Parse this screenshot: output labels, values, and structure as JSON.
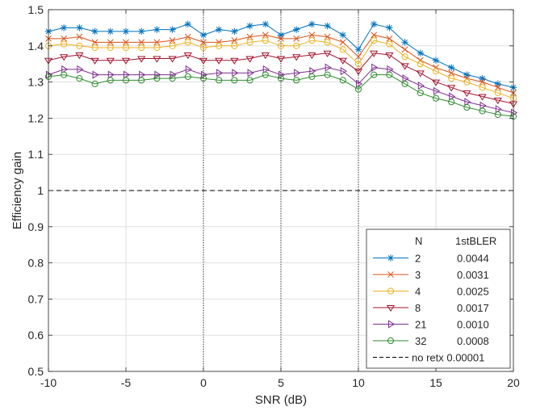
{
  "chart_data": {
    "type": "line",
    "xlabel": "SNR (dB)",
    "ylabel": "Efficiency gain",
    "xlim": [
      -10,
      20
    ],
    "ylim": [
      0.5,
      1.5
    ],
    "xticks": [
      -10,
      -5,
      0,
      5,
      10,
      15,
      20
    ],
    "yticks": [
      0.5,
      0.6,
      0.7,
      0.8,
      0.9,
      1,
      1.1,
      1.2,
      1.3,
      1.4,
      1.5
    ],
    "grid": true,
    "legend_position": "bottom-right",
    "legend_headers": [
      "N",
      "1stBLER"
    ],
    "vertical_markers": [
      0,
      5,
      10
    ],
    "x": [
      -10,
      -9,
      -8,
      -7,
      -6,
      -5,
      -4,
      -3,
      -2,
      -1,
      0,
      1,
      2,
      3,
      4,
      5,
      6,
      7,
      8,
      9,
      10,
      11,
      12,
      13,
      14,
      15,
      16,
      17,
      18,
      19,
      20
    ],
    "series": [
      {
        "name": "2",
        "bler": "0.0044",
        "color": "#0072BD",
        "marker": "asterisk",
        "values": [
          1.44,
          1.45,
          1.45,
          1.44,
          1.44,
          1.44,
          1.44,
          1.445,
          1.445,
          1.46,
          1.43,
          1.445,
          1.44,
          1.455,
          1.46,
          1.43,
          1.445,
          1.46,
          1.455,
          1.43,
          1.39,
          1.46,
          1.45,
          1.41,
          1.38,
          1.36,
          1.34,
          1.32,
          1.31,
          1.295,
          1.285
        ]
      },
      {
        "name": "3",
        "bler": "0.0031",
        "color": "#D95319",
        "marker": "x",
        "values": [
          1.42,
          1.42,
          1.425,
          1.41,
          1.41,
          1.41,
          1.41,
          1.41,
          1.415,
          1.425,
          1.41,
          1.41,
          1.415,
          1.425,
          1.43,
          1.42,
          1.42,
          1.43,
          1.425,
          1.41,
          1.37,
          1.43,
          1.42,
          1.39,
          1.36,
          1.34,
          1.325,
          1.31,
          1.3,
          1.285,
          1.27
        ]
      },
      {
        "name": "4",
        "bler": "0.0025",
        "color": "#EDB120",
        "marker": "circle",
        "values": [
          1.4,
          1.405,
          1.4,
          1.395,
          1.395,
          1.395,
          1.395,
          1.395,
          1.4,
          1.41,
          1.395,
          1.4,
          1.4,
          1.41,
          1.415,
          1.4,
          1.4,
          1.415,
          1.41,
          1.39,
          1.35,
          1.415,
          1.405,
          1.37,
          1.35,
          1.33,
          1.31,
          1.3,
          1.285,
          1.27,
          1.255
        ]
      },
      {
        "name": "8",
        "bler": "0.0017",
        "color": "#A2142F",
        "marker": "triangle-down",
        "values": [
          1.36,
          1.37,
          1.375,
          1.36,
          1.36,
          1.36,
          1.365,
          1.365,
          1.365,
          1.375,
          1.36,
          1.36,
          1.36,
          1.365,
          1.375,
          1.365,
          1.37,
          1.375,
          1.38,
          1.36,
          1.33,
          1.38,
          1.375,
          1.345,
          1.325,
          1.3,
          1.285,
          1.27,
          1.26,
          1.25,
          1.24
        ]
      },
      {
        "name": "21",
        "bler": "0.0010",
        "color": "#7E2F8E",
        "marker": "triangle-right",
        "values": [
          1.32,
          1.335,
          1.335,
          1.32,
          1.32,
          1.32,
          1.32,
          1.32,
          1.32,
          1.335,
          1.32,
          1.325,
          1.325,
          1.325,
          1.335,
          1.32,
          1.325,
          1.33,
          1.34,
          1.33,
          1.295,
          1.34,
          1.335,
          1.31,
          1.29,
          1.275,
          1.26,
          1.245,
          1.235,
          1.225,
          1.215
        ]
      },
      {
        "name": "32",
        "bler": "0.0008",
        "color": "#2E8B2E",
        "marker": "circle",
        "values": [
          1.315,
          1.32,
          1.31,
          1.295,
          1.305,
          1.305,
          1.305,
          1.31,
          1.31,
          1.315,
          1.31,
          1.305,
          1.305,
          1.305,
          1.32,
          1.31,
          1.305,
          1.315,
          1.32,
          1.305,
          1.28,
          1.32,
          1.32,
          1.295,
          1.27,
          1.255,
          1.245,
          1.23,
          1.22,
          1.21,
          1.205
        ]
      }
    ],
    "reference": {
      "name": "no retx",
      "bler": "0.00001",
      "value": 1,
      "color": "#000000",
      "style": "dashed"
    }
  }
}
